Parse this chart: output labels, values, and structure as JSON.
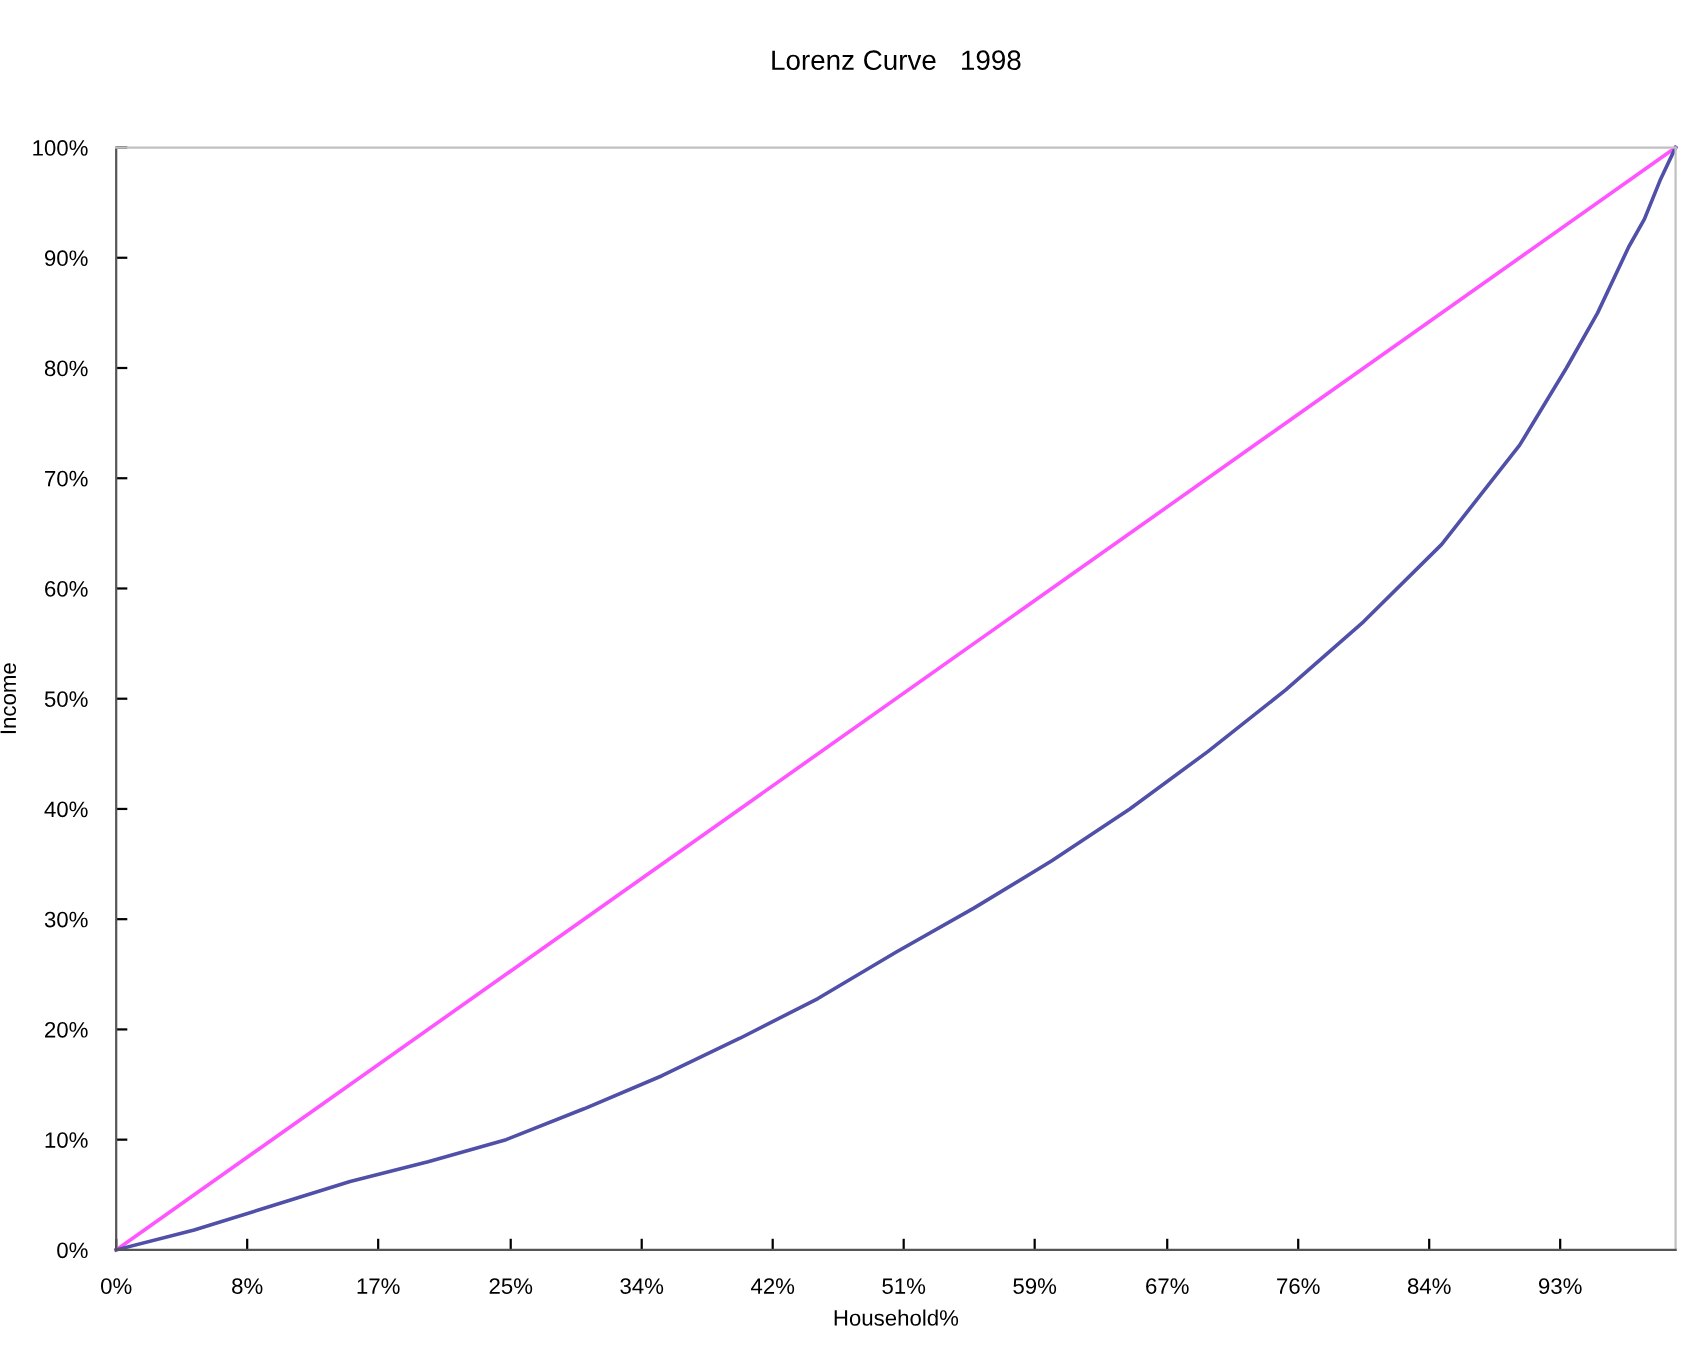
{
  "chart_data": {
    "type": "line",
    "title": "Lorenz Curve   1998",
    "xlabel": "Household%",
    "ylabel": "Income",
    "series": [
      {
        "color": "#ff55ff",
        "x": [
          0,
          100
        ],
        "values": [
          0,
          100
        ]
      },
      {
        "color": "#5050a8",
        "x": [
          0,
          5,
          10,
          15,
          20,
          25,
          30,
          35,
          40,
          45,
          50,
          55,
          60,
          65,
          70,
          75,
          80,
          85,
          90,
          93,
          95,
          97,
          98,
          99,
          100
        ],
        "values": [
          0,
          1.8,
          4,
          6.2,
          8,
          10,
          12.8,
          15.8,
          19.2,
          22.8,
          27,
          31,
          35.3,
          40,
          45.2,
          50.8,
          57,
          64,
          73,
          80,
          85,
          91,
          93.5,
          97,
          100
        ]
      }
    ],
    "xlim": [
      0,
      100
    ],
    "ylim": [
      0,
      100
    ],
    "xticks": [
      {
        "value": 0,
        "label": "0%"
      },
      {
        "value": 8.4,
        "label": "8%"
      },
      {
        "value": 16.8,
        "label": "17%"
      },
      {
        "value": 25.3,
        "label": "25%"
      },
      {
        "value": 33.7,
        "label": "34%"
      },
      {
        "value": 42.1,
        "label": "42%"
      },
      {
        "value": 50.5,
        "label": "51%"
      },
      {
        "value": 58.9,
        "label": "59%"
      },
      {
        "value": 67.4,
        "label": "67%"
      },
      {
        "value": 75.8,
        "label": "76%"
      },
      {
        "value": 84.2,
        "label": "84%"
      },
      {
        "value": 92.6,
        "label": "93%"
      }
    ],
    "yticks": [
      {
        "value": 0,
        "label": "0%"
      },
      {
        "value": 10,
        "label": "10%"
      },
      {
        "value": 20,
        "label": "20%"
      },
      {
        "value": 30,
        "label": "30%"
      },
      {
        "value": 40,
        "label": "40%"
      },
      {
        "value": 50,
        "label": "50%"
      },
      {
        "value": 60,
        "label": "60%"
      },
      {
        "value": 70,
        "label": "70%"
      },
      {
        "value": 80,
        "label": "80%"
      },
      {
        "value": 90,
        "label": "90%"
      },
      {
        "value": 100,
        "label": "100%"
      }
    ],
    "grid": false,
    "marker": "none",
    "line_style": "solid"
  }
}
